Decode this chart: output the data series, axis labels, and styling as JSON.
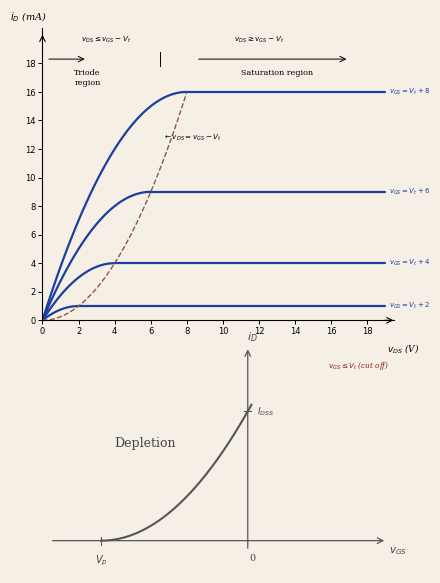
{
  "top_chart": {
    "xlabel": "$v_{DS}$ (V)",
    "ylabel": "$i_D$ (mA)",
    "xlim": [
      0,
      19.5
    ],
    "ylim": [
      0,
      20.5
    ],
    "xticks": [
      0,
      2,
      4,
      6,
      8,
      10,
      12,
      14,
      16,
      18
    ],
    "yticks": [
      0,
      2,
      4,
      6,
      8,
      10,
      12,
      14,
      16,
      18
    ],
    "curve_color": "#1a3fa0",
    "dashed_color": "#8b5a3c",
    "curves": [
      {
        "isat": 16.0,
        "vdsat": 8.0,
        "label": "$v_{GS} = V_t + 8$"
      },
      {
        "isat": 9.0,
        "vdsat": 6.0,
        "label": "$v_{GS} = V_t + 6$"
      },
      {
        "isat": 4.0,
        "vdsat": 4.0,
        "label": "$v_{GS} = V_t + 4$"
      },
      {
        "isat": 1.0,
        "vdsat": 2.0,
        "label": "$v_{GS} = V_t + 2$"
      }
    ],
    "triode_cond": "$v_{DS} \\leq v_{GS} - V_t$",
    "sat_cond": "$v_{DS} \\geq v_{GS} - V_t$",
    "triode_label": "Triode\nregion",
    "saturation_label": "Saturation region",
    "boundary_label": "$\\leftarrow v_{DS} = v_{GS} - V_t$",
    "cutoff_label": "$v_{GS} \\leq V_t$ (cut off)",
    "bg_color": "#f5efe6"
  },
  "bottom_chart": {
    "curve_color": "#555555",
    "xlabel": "$v_{GS}$",
    "ylabel": "$i_D$",
    "idss_label": "$I_{DSS}$",
    "vp_label": "$V_p$",
    "zero_label": "0",
    "depletion_label": "Depletion",
    "bg_color": "#f5efe6",
    "Vp": -2.0,
    "IDSS": 1.0
  }
}
